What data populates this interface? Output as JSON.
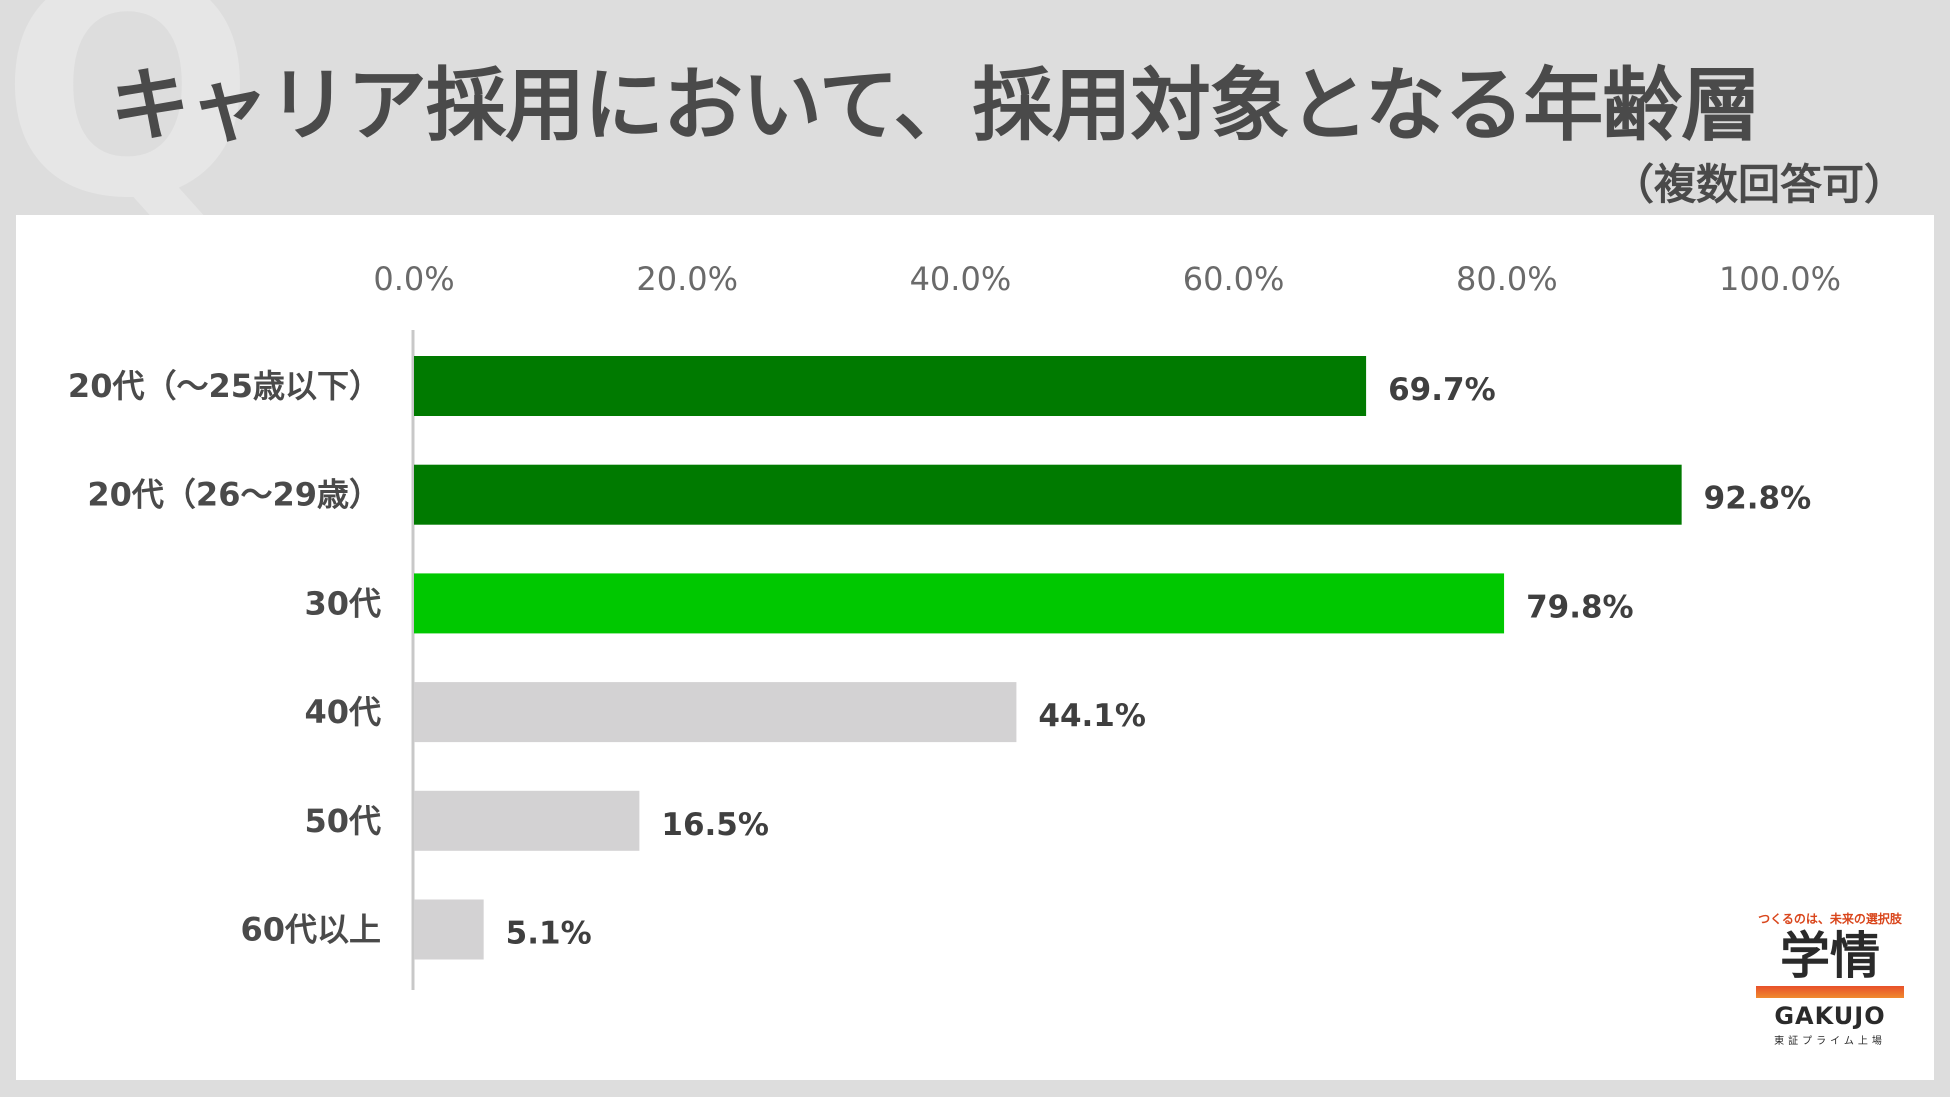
{
  "title": "キャリア採用において、採用対象となる年齢層",
  "subtitle": "（複数回答可）",
  "decor": {
    "q_mark": "Q"
  },
  "chart_data": {
    "type": "bar",
    "orientation": "horizontal",
    "title": "キャリア採用において、採用対象となる年齢層",
    "subtitle": "（複数回答可）",
    "categories": [
      "20代（～25歳以下）",
      "20代（26～29歳）",
      "30代",
      "40代",
      "50代",
      "60代以上"
    ],
    "values": [
      69.7,
      92.8,
      79.8,
      44.1,
      16.5,
      5.1
    ],
    "value_labels": [
      "69.7%",
      "92.8%",
      "79.8%",
      "44.1%",
      "16.5%",
      "5.1%"
    ],
    "bar_colors": [
      "#007a00",
      "#007a00",
      "#00c800",
      "#d3d2d3",
      "#d3d2d3",
      "#d3d2d3"
    ],
    "xlim": [
      0,
      100
    ],
    "x_ticks": [
      0,
      20,
      40,
      60,
      80,
      100
    ],
    "x_tick_labels": [
      "0.0%",
      "20.0%",
      "40.0%",
      "60.0%",
      "80.0%",
      "100.0%"
    ],
    "x_axis_position": "top",
    "grid": false,
    "legend": "none",
    "xlabel": "",
    "ylabel": ""
  },
  "logo": {
    "tagline": "つくるのは、未来の選択肢",
    "mark": "学情",
    "english": "GAKUJO",
    "sub": "東証プライム上場"
  }
}
